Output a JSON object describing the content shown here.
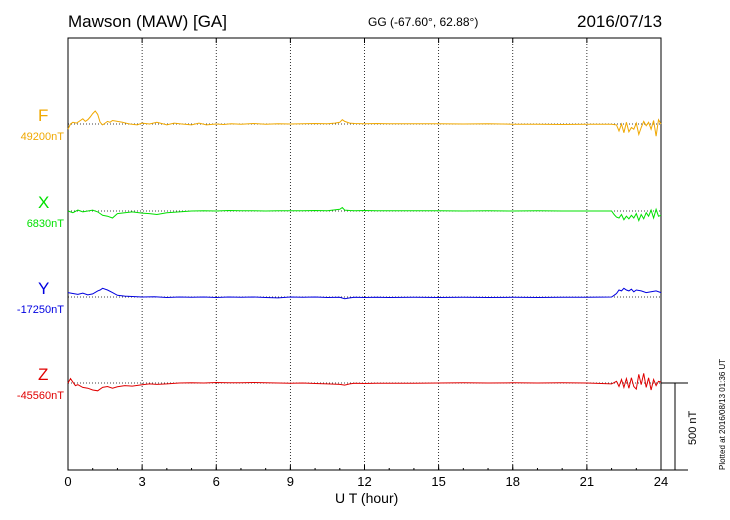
{
  "header": {
    "title": "Mawson (MAW)  [GA]",
    "coords": "GG (-67.60°,  62.88°)",
    "date": "2016/07/13"
  },
  "footer": {
    "plotted": "Plotted at 2016/08/13 01:36 UT",
    "scale_label": "500 nT"
  },
  "chart_data": {
    "type": "line",
    "xlabel": "U T (hour)",
    "xlim": [
      0,
      24
    ],
    "xticks": [
      "0",
      "3",
      "6",
      "9",
      "12",
      "15",
      "18",
      "21",
      "24"
    ],
    "scale_bar_nT": 500,
    "series": [
      {
        "name": "F",
        "baseline": "49200nT",
        "color": "#f0a800",
        "x": [
          0,
          0.1,
          0.2,
          0.35,
          0.5,
          0.6,
          0.7,
          0.8,
          0.9,
          1.0,
          1.1,
          1.2,
          1.3,
          1.4,
          1.5,
          1.6,
          1.7,
          1.8,
          2.0,
          2.2,
          2.5,
          2.8,
          3.0,
          3.3,
          3.6,
          4.0,
          4.3,
          4.6,
          5.0,
          5.3,
          5.6,
          6.0,
          6.3,
          6.6,
          7.0,
          7.5,
          8.0,
          8.5,
          9.0,
          9.5,
          10.0,
          10.5,
          10.8,
          11.0,
          11.1,
          11.2,
          11.4,
          11.6,
          12.0,
          12.5,
          13.0,
          13.5,
          14.0,
          15.0,
          16.0,
          17.0,
          18.0,
          19.0,
          20.0,
          21.0,
          21.5,
          22.0,
          22.2,
          22.3,
          22.4,
          22.5,
          22.6,
          22.7,
          22.8,
          22.9,
          23.0,
          23.1,
          23.2,
          23.3,
          23.4,
          23.5,
          23.6,
          23.7,
          23.8,
          23.9,
          24.0
        ],
        "y": [
          -30,
          0,
          10,
          5,
          20,
          30,
          15,
          25,
          40,
          60,
          75,
          55,
          10,
          -5,
          5,
          15,
          10,
          20,
          15,
          10,
          0,
          -5,
          5,
          0,
          10,
          -5,
          5,
          0,
          -5,
          5,
          -5,
          0,
          -3,
          2,
          -2,
          3,
          -2,
          2,
          0,
          2,
          3,
          2,
          5,
          10,
          25,
          15,
          5,
          3,
          2,
          3,
          1,
          2,
          2,
          1,
          0,
          1,
          -1,
          -2,
          -3,
          -2,
          -1,
          -2,
          -5,
          -40,
          0,
          -50,
          10,
          -45,
          -20,
          -30,
          5,
          -60,
          -20,
          15,
          -10,
          10,
          -30,
          20,
          -70,
          25,
          0
        ]
      },
      {
        "name": "X",
        "baseline": "6830nT",
        "color": "#00e000",
        "x": [
          0,
          0.2,
          0.4,
          0.6,
          0.8,
          1.0,
          1.2,
          1.4,
          1.6,
          1.8,
          2.0,
          2.3,
          2.6,
          3.0,
          3.3,
          3.6,
          4.0,
          4.5,
          5.0,
          5.5,
          6.0,
          6.5,
          7.0,
          7.5,
          8.0,
          8.5,
          9.0,
          9.5,
          10.0,
          10.5,
          11.0,
          11.1,
          11.2,
          11.4,
          11.6,
          12.0,
          12.5,
          13.0,
          14.0,
          15.0,
          16.0,
          17.0,
          18.0,
          19.0,
          20.0,
          21.0,
          22.0,
          22.1,
          22.2,
          22.3,
          22.4,
          22.5,
          22.6,
          22.7,
          22.8,
          22.9,
          23.0,
          23.1,
          23.2,
          23.3,
          23.4,
          23.5,
          23.6,
          23.7,
          23.8,
          23.9,
          24.0
        ],
        "y": [
          0,
          -10,
          5,
          -5,
          0,
          5,
          -5,
          -25,
          -30,
          -40,
          -15,
          -10,
          -5,
          -12,
          -15,
          -20,
          -10,
          -5,
          0,
          2,
          0,
          3,
          2,
          1,
          0,
          2,
          1,
          2,
          3,
          2,
          10,
          20,
          5,
          3,
          2,
          3,
          2,
          1,
          2,
          1,
          0,
          1,
          0,
          1,
          0,
          0,
          0,
          -20,
          -35,
          -40,
          -20,
          -50,
          -30,
          -45,
          -25,
          -40,
          -15,
          -55,
          -20,
          -45,
          -10,
          -30,
          5,
          -40,
          10,
          -30,
          -25
        ]
      },
      {
        "name": "Y",
        "baseline": "-17250nT",
        "color": "#0000e0",
        "x": [
          0,
          0.2,
          0.4,
          0.6,
          0.8,
          1.0,
          1.2,
          1.3,
          1.4,
          1.6,
          1.8,
          2.0,
          2.3,
          2.6,
          3.0,
          3.5,
          4.0,
          4.5,
          5.0,
          5.5,
          6.0,
          6.5,
          7.0,
          7.5,
          8.0,
          8.5,
          9.0,
          9.5,
          10.0,
          10.5,
          11.0,
          11.2,
          11.4,
          11.6,
          12.0,
          12.5,
          13.0,
          14.0,
          15.0,
          16.0,
          17.0,
          18.0,
          19.0,
          20.0,
          21.0,
          22.0,
          22.1,
          22.2,
          22.3,
          22.4,
          22.5,
          22.6,
          22.7,
          22.8,
          22.9,
          23.0,
          23.2,
          23.4,
          23.6,
          23.8,
          24.0
        ],
        "y": [
          25,
          20,
          15,
          22,
          12,
          18,
          35,
          40,
          50,
          40,
          25,
          10,
          5,
          3,
          0,
          2,
          -3,
          0,
          -2,
          0,
          -3,
          0,
          -2,
          0,
          -3,
          -5,
          0,
          -2,
          0,
          -3,
          -2,
          -10,
          -5,
          -2,
          -3,
          -2,
          -3,
          -2,
          -3,
          -2,
          -3,
          -2,
          -3,
          -2,
          -2,
          0,
          10,
          20,
          40,
          35,
          50,
          40,
          35,
          45,
          30,
          40,
          35,
          25,
          30,
          35,
          25
        ]
      },
      {
        "name": "Z",
        "baseline": "-45560nT",
        "color": "#e00000",
        "x": [
          0,
          0.1,
          0.2,
          0.3,
          0.4,
          0.6,
          0.8,
          1.0,
          1.2,
          1.4,
          1.6,
          1.8,
          2.0,
          2.3,
          2.6,
          3.0,
          3.3,
          3.6,
          4.0,
          4.5,
          5.0,
          5.5,
          6.0,
          6.5,
          7.0,
          7.5,
          8.0,
          8.5,
          9.0,
          9.5,
          10.0,
          10.5,
          11.0,
          11.2,
          11.4,
          11.6,
          12.0,
          12.5,
          13.0,
          14.0,
          15.0,
          16.0,
          17.0,
          18.0,
          19.0,
          20.0,
          21.0,
          22.0,
          22.2,
          22.3,
          22.4,
          22.5,
          22.6,
          22.7,
          22.8,
          22.9,
          23.0,
          23.1,
          23.2,
          23.3,
          23.4,
          23.5,
          23.6,
          23.7,
          23.8,
          23.9,
          24.0
        ],
        "y": [
          0,
          25,
          5,
          -15,
          -10,
          -25,
          -30,
          -40,
          -45,
          -25,
          -20,
          -30,
          -22,
          -15,
          -18,
          -10,
          -5,
          -8,
          -5,
          0,
          2,
          0,
          3,
          2,
          1,
          3,
          2,
          0,
          -2,
          0,
          -3,
          -5,
          -8,
          -12,
          -5,
          -2,
          -3,
          -2,
          -1,
          -2,
          0,
          1,
          0,
          1,
          0,
          1,
          0,
          -5,
          10,
          -20,
          20,
          -25,
          25,
          -30,
          30,
          -20,
          -35,
          50,
          -10,
          55,
          -25,
          30,
          -40,
          20,
          -15,
          10,
          5
        ]
      }
    ]
  }
}
